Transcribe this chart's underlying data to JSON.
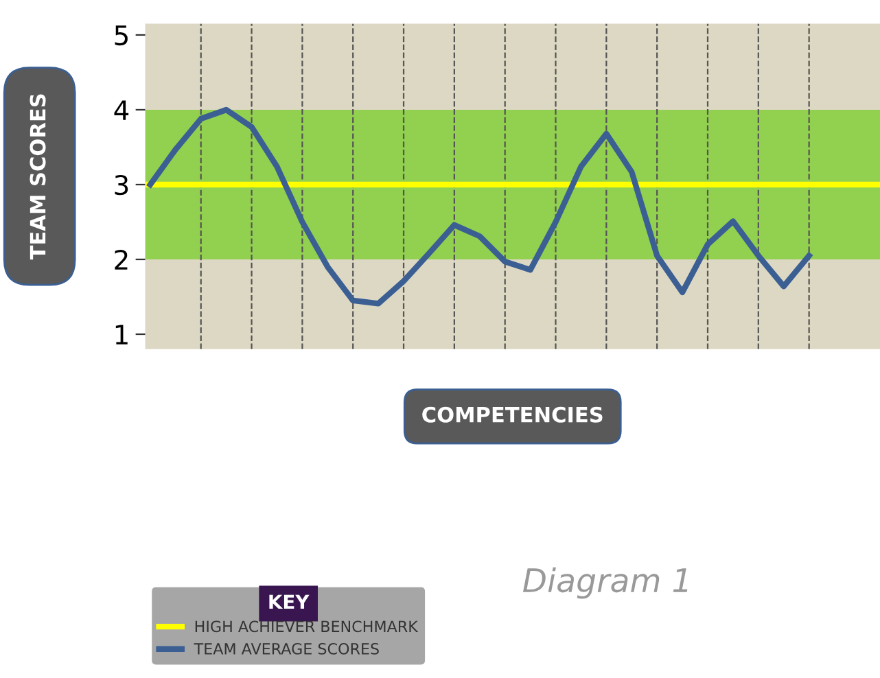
{
  "chart_data": {
    "type": "line",
    "xlabel": "COMPETENCIES",
    "ylabel": "TEAM SCORES",
    "legend_title": "KEY",
    "legend": "bottom left",
    "annotations": [
      "Diagram 1"
    ],
    "categories": [
      null,
      null,
      null,
      null,
      null,
      null,
      null,
      null,
      null,
      null,
      null,
      null,
      null,
      null,
      null,
      null,
      null,
      null,
      null,
      null,
      null,
      null,
      null,
      null,
      null,
      null,
      null
    ],
    "ylim": [
      0.8,
      5.15
    ],
    "yticks": [
      1,
      2,
      3,
      4,
      5
    ],
    "tick_labels": "y",
    "grid": "x",
    "line_style": "solid",
    "bands": [
      {
        "axis": "y",
        "from": 2,
        "to": 4,
        "color": "#92d050"
      }
    ],
    "ref_lines": [
      {
        "axis": "y",
        "value": 3,
        "label": "HIGH ACHIEVER BENCHMARK",
        "color": "#ffff00"
      }
    ],
    "series": [
      {
        "name": "TEAM AVERAGE SCORES",
        "color": "#3b5f93",
        "values": [
          3.0,
          3.47,
          3.88,
          4.0,
          3.77,
          3.24,
          2.5,
          1.9,
          1.45,
          1.41,
          1.71,
          2.08,
          2.46,
          2.31,
          1.97,
          1.86,
          2.5,
          3.24,
          3.68,
          3.17,
          2.05,
          1.56,
          2.2,
          2.51,
          2.05,
          1.64,
          2.05
        ]
      }
    ]
  }
}
